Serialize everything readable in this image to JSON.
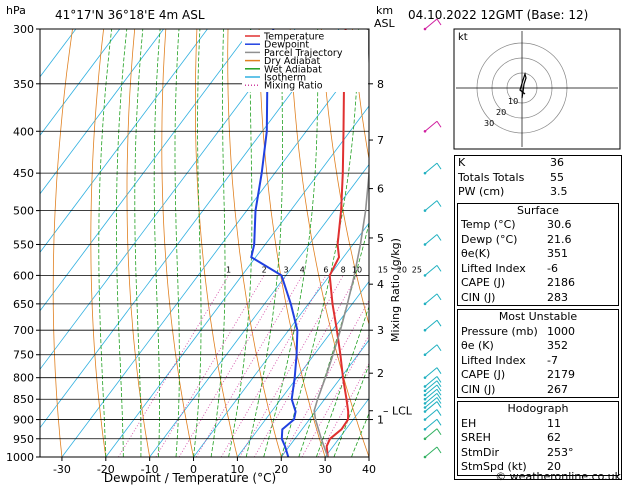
{
  "header": {
    "location": "41°17'N  36°18'E  4m  ASL",
    "datetime": "04.10.2022  12GMT  (Base: 12)",
    "hpa_label": "hPa",
    "km_label": "km",
    "asl_label": "ASL"
  },
  "chart_data": {
    "type": "line",
    "title": "",
    "xlabel": "Dewpoint / Temperature (°C)",
    "ylabel": "hPa",
    "right_label": "Mixing Ratio (g/kg)",
    "xlim": [
      -35,
      40
    ],
    "ylim": [
      1000,
      300
    ],
    "x_ticks": [
      -30,
      -20,
      -10,
      0,
      10,
      20,
      30,
      40
    ],
    "pressure_ticks": [
      300,
      350,
      400,
      450,
      500,
      550,
      600,
      650,
      700,
      750,
      800,
      850,
      900,
      950,
      1000
    ],
    "km_ticks": [
      {
        "label": "8",
        "p": 350
      },
      {
        "label": "7",
        "p": 410
      },
      {
        "label": "6",
        "p": 470
      },
      {
        "label": "5",
        "p": 540
      },
      {
        "label": "4",
        "p": 615
      },
      {
        "label": "3",
        "p": 700
      },
      {
        "label": "2",
        "p": 790
      },
      {
        "label": "1",
        "p": 900
      },
      {
        "label": "LCL",
        "p": 878
      }
    ],
    "mixing_ratio_labels": [
      "1",
      "2",
      "3",
      "4",
      "6",
      "8",
      "10",
      "15",
      "20",
      "25"
    ],
    "mixing_ratio_values": [
      1,
      2,
      3,
      4,
      6,
      8,
      10,
      15,
      20,
      25
    ],
    "legend": [
      {
        "name": "Temperature",
        "color": "#e03030",
        "style": "solid"
      },
      {
        "name": "Dewpoint",
        "color": "#2040e0",
        "style": "solid"
      },
      {
        "name": "Parcel Trajectory",
        "color": "#909090",
        "style": "solid"
      },
      {
        "name": "Dry Adiabat",
        "color": "#e08020",
        "style": "solid"
      },
      {
        "name": "Wet Adiabat",
        "color": "#20a020",
        "style": "solid"
      },
      {
        "name": "Isotherm",
        "color": "#30b0e0",
        "style": "solid"
      },
      {
        "name": "Mixing Ratio",
        "color": "#d040a0",
        "style": "dotted"
      }
    ],
    "series": [
      {
        "name": "Temperature",
        "color": "#e03030",
        "p": [
          1000,
          970,
          950,
          925,
          900,
          880,
          850,
          800,
          750,
          700,
          650,
          600,
          570,
          550,
          500,
          450,
          400,
          350,
          300
        ],
        "t": [
          30.6,
          28.5,
          28.0,
          29.0,
          28.8,
          27.5,
          25.0,
          20.5,
          16.0,
          11.0,
          5.5,
          0.0,
          -1.0,
          -3.5,
          -8.5,
          -14.5,
          -21.5,
          -29.5,
          -38.5
        ]
      },
      {
        "name": "Dewpoint",
        "color": "#2040e0",
        "p": [
          1000,
          970,
          950,
          925,
          900,
          880,
          850,
          800,
          750,
          700,
          650,
          600,
          570,
          550,
          500,
          450,
          400,
          350,
          300
        ],
        "t": [
          21.6,
          19.0,
          17.0,
          15.5,
          16.5,
          15.5,
          12.5,
          9.5,
          6.0,
          2.0,
          -4.0,
          -11.0,
          -21.0,
          -22.5,
          -28.0,
          -33.0,
          -39.0,
          -47.0,
          -55.0
        ]
      },
      {
        "name": "Parcel Trajectory",
        "color": "#909090",
        "p": [
          1000,
          950,
          900,
          878,
          850,
          800,
          750,
          700,
          650,
          600,
          550,
          500,
          450,
          400,
          350,
          300
        ],
        "t": [
          30.6,
          26.0,
          21.4,
          19.6,
          18.4,
          16.5,
          14.3,
          11.8,
          8.9,
          5.6,
          1.7,
          -2.9,
          -8.5,
          -15.2,
          -23.5,
          -33.5
        ]
      }
    ],
    "wind_barbs_pressure": [
      1000,
      950,
      925,
      900,
      880,
      870,
      860,
      850,
      840,
      830,
      820,
      800,
      750,
      700,
      650,
      600,
      550,
      500,
      450,
      400,
      300
    ]
  },
  "stats": {
    "rows": [
      {
        "label": "K",
        "value": "36"
      },
      {
        "label": "Totals Totals",
        "value": "55"
      },
      {
        "label": "PW (cm)",
        "value": "3.5"
      }
    ],
    "surface": {
      "title": "Surface",
      "rows": [
        {
          "label": "Temp (°C)",
          "value": "30.6"
        },
        {
          "label": "Dewp (°C)",
          "value": "21.6"
        },
        {
          "label": "θe(K)",
          "value": "351"
        },
        {
          "label": "Lifted Index",
          "value": "-6"
        },
        {
          "label": "CAPE (J)",
          "value": "2186"
        },
        {
          "label": "CIN (J)",
          "value": "283"
        }
      ]
    },
    "most_unstable": {
      "title": "Most Unstable",
      "rows": [
        {
          "label": "Pressure (mb)",
          "value": "1000"
        },
        {
          "label": "θe (K)",
          "value": "352"
        },
        {
          "label": "Lifted Index",
          "value": "-7"
        },
        {
          "label": "CAPE (J)",
          "value": "2179"
        },
        {
          "label": "CIN (J)",
          "value": "267"
        }
      ]
    },
    "hodograph": {
      "title": "Hodograph",
      "rows": [
        {
          "label": "EH",
          "value": "11"
        },
        {
          "label": "SREH",
          "value": "62"
        },
        {
          "label": "StmDir",
          "value": "253°"
        },
        {
          "label": "StmSpd (kt)",
          "value": "20"
        }
      ]
    }
  },
  "hodo": {
    "label": "kt",
    "ring_labels": [
      "10",
      "20",
      "30"
    ]
  },
  "footer": "© weatheronline.co.uk"
}
